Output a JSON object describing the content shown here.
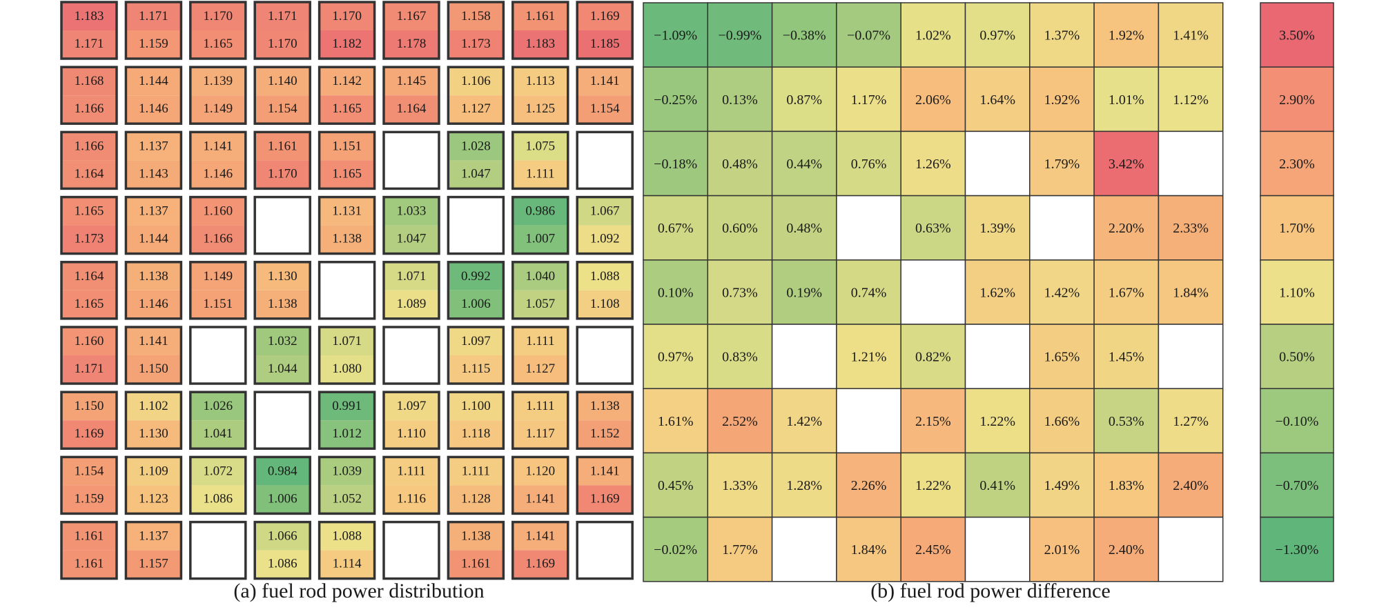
{
  "colors": {
    "scale": [
      "#5fb57a",
      "#8bc47c",
      "#b7cf81",
      "#ebe28a",
      "#f7c57f",
      "#f49d75",
      "#ea6872"
    ],
    "cell_border": "#333333",
    "text": "#1a1a1a"
  },
  "captions": {
    "a": "(a) fuel rod power distribution",
    "b": "(b) fuel rod power difference"
  },
  "chart_data": [
    {
      "type": "heatmap",
      "name_ref": "a",
      "title": "",
      "rows": 9,
      "cols": 9,
      "cells": [
        [
          [
            "1.183",
            "1.171"
          ],
          [
            "1.171",
            "1.159"
          ],
          [
            "1.170",
            "1.165"
          ],
          [
            "1.171",
            "1.170"
          ],
          [
            "1.170",
            "1.182"
          ],
          [
            "1.167",
            "1.178"
          ],
          [
            "1.158",
            "1.173"
          ],
          [
            "1.161",
            "1.183"
          ],
          [
            "1.169",
            "1.185"
          ]
        ],
        [
          [
            "1.168",
            "1.166"
          ],
          [
            "1.144",
            "1.146"
          ],
          [
            "1.139",
            "1.149"
          ],
          [
            "1.140",
            "1.154"
          ],
          [
            "1.142",
            "1.165"
          ],
          [
            "1.145",
            "1.164"
          ],
          [
            "1.106",
            "1.127"
          ],
          [
            "1.113",
            "1.125"
          ],
          [
            "1.141",
            "1.154"
          ]
        ],
        [
          [
            "1.166",
            "1.164"
          ],
          [
            "1.137",
            "1.143"
          ],
          [
            "1.141",
            "1.146"
          ],
          [
            "1.161",
            "1.170"
          ],
          [
            "1.151",
            "1.165"
          ],
          null,
          [
            "1.028",
            "1.047"
          ],
          [
            "1.075",
            "1.111"
          ],
          null
        ],
        [
          [
            "1.165",
            "1.173"
          ],
          [
            "1.137",
            "1.144"
          ],
          [
            "1.160",
            "1.166"
          ],
          null,
          [
            "1.131",
            "1.138"
          ],
          [
            "1.033",
            "1.047"
          ],
          null,
          [
            "0.986",
            "1.007"
          ],
          [
            "1.067",
            "1.092"
          ]
        ],
        [
          [
            "1.164",
            "1.165"
          ],
          [
            "1.138",
            "1.146"
          ],
          [
            "1.149",
            "1.151"
          ],
          [
            "1.130",
            "1.138"
          ],
          null,
          [
            "1.071",
            "1.089"
          ],
          [
            "0.992",
            "1.006"
          ],
          [
            "1.040",
            "1.057"
          ],
          [
            "1.088",
            "1.108"
          ]
        ],
        [
          [
            "1.160",
            "1.171"
          ],
          [
            "1.141",
            "1.150"
          ],
          null,
          [
            "1.032",
            "1.044"
          ],
          [
            "1.071",
            "1.080"
          ],
          null,
          [
            "1.097",
            "1.115"
          ],
          [
            "1.111",
            "1.127"
          ],
          null
        ],
        [
          [
            "1.150",
            "1.169"
          ],
          [
            "1.102",
            "1.130"
          ],
          [
            "1.026",
            "1.041"
          ],
          null,
          [
            "0.991",
            "1.012"
          ],
          [
            "1.097",
            "1.110"
          ],
          [
            "1.100",
            "1.118"
          ],
          [
            "1.111",
            "1.117"
          ],
          [
            "1.138",
            "1.152"
          ]
        ],
        [
          [
            "1.154",
            "1.159"
          ],
          [
            "1.109",
            "1.123"
          ],
          [
            "1.072",
            "1.086"
          ],
          [
            "0.984",
            "1.006"
          ],
          [
            "1.039",
            "1.052"
          ],
          [
            "1.111",
            "1.116"
          ],
          [
            "1.111",
            "1.128"
          ],
          [
            "1.120",
            "1.141"
          ],
          [
            "1.141",
            "1.169"
          ]
        ],
        [
          [
            "1.161",
            "1.161"
          ],
          [
            "1.137",
            "1.157"
          ],
          null,
          [
            "1.066",
            "1.086"
          ],
          [
            "1.088",
            "1.114"
          ],
          null,
          [
            "1.138",
            "1.161"
          ],
          [
            "1.141",
            "1.169"
          ],
          null
        ]
      ]
    },
    {
      "type": "heatmap",
      "name_ref": "b",
      "title": "",
      "rows": 9,
      "cols": 9,
      "cells": [
        [
          "−1.09%",
          "−0.99%",
          "−0.38%",
          "−0.07%",
          "1.02%",
          "0.97%",
          "1.37%",
          "1.92%",
          "1.41%"
        ],
        [
          "−0.25%",
          "0.13%",
          "0.87%",
          "1.17%",
          "2.06%",
          "1.64%",
          "1.92%",
          "1.01%",
          "1.12%"
        ],
        [
          "−0.18%",
          "0.48%",
          "0.44%",
          "0.76%",
          "1.26%",
          null,
          "1.79%",
          "3.42%",
          null
        ],
        [
          "0.67%",
          "0.60%",
          "0.48%",
          null,
          "0.63%",
          "1.39%",
          null,
          "2.20%",
          "2.33%"
        ],
        [
          "0.10%",
          "0.73%",
          "0.19%",
          "0.74%",
          null,
          "1.62%",
          "1.42%",
          "1.67%",
          "1.84%"
        ],
        [
          "0.97%",
          "0.83%",
          null,
          "1.21%",
          "0.82%",
          null,
          "1.65%",
          "1.45%",
          null
        ],
        [
          "1.61%",
          "2.52%",
          "1.42%",
          null,
          "2.15%",
          "1.22%",
          "1.66%",
          "0.53%",
          "1.27%"
        ],
        [
          "0.45%",
          "1.33%",
          "1.28%",
          "2.26%",
          "1.22%",
          "0.41%",
          "1.49%",
          "1.83%",
          "2.40%"
        ],
        [
          "−0.02%",
          "1.77%",
          null,
          "1.84%",
          "2.45%",
          null,
          "2.01%",
          "2.40%",
          null
        ]
      ]
    },
    {
      "type": "legend",
      "name_ref": "colorbar",
      "labels": [
        "3.50%",
        "2.90%",
        "2.30%",
        "1.70%",
        "1.10%",
        "0.50%",
        "−0.10%",
        "−0.70%",
        "−1.30%"
      ],
      "colors": [
        "#ea6872",
        "#f38f75",
        "#f5a577",
        "#f7c57f",
        "#ede08a",
        "#b7cf81",
        "#9cc97e",
        "#7cbe7c",
        "#5fb57a"
      ]
    }
  ]
}
